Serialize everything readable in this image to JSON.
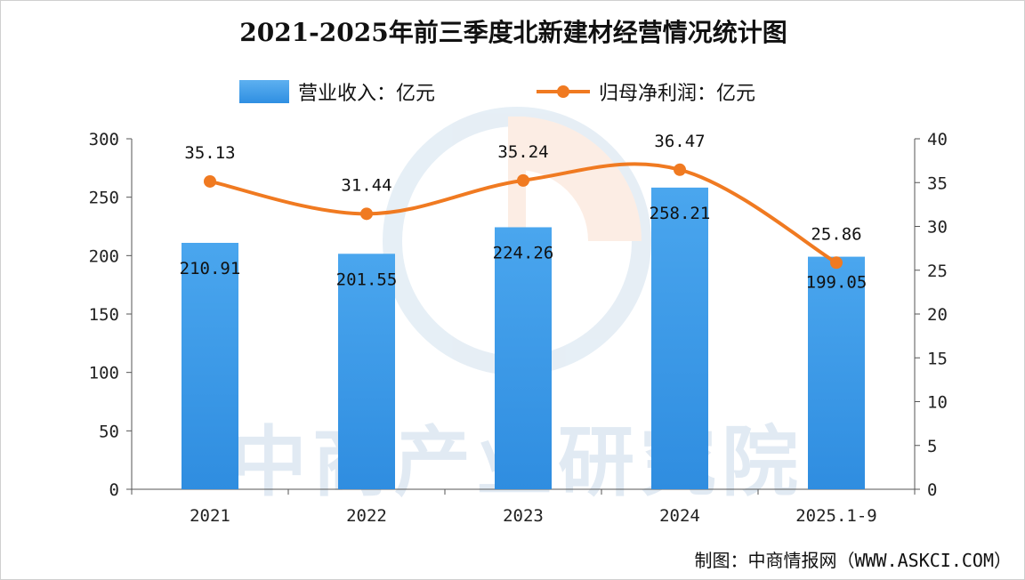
{
  "title": "2021-2025年前三季度北新建材经营情况统计图",
  "legend": {
    "bar_label": "营业收入：亿元",
    "line_label": "归母净利润：亿元"
  },
  "source": "制图：中商情报网（WWW.ASKCI.COM）",
  "watermark": "中商产业研究院",
  "colors": {
    "bar": "#3a97e6",
    "line": "#f07a21",
    "axis": "#555555"
  },
  "chart_data": {
    "type": "bar",
    "categories": [
      "2021",
      "2022",
      "2023",
      "2024",
      "2025.1-9"
    ],
    "series": [
      {
        "name": "营业收入：亿元",
        "type": "bar",
        "axis": "left",
        "values": [
          210.91,
          201.55,
          224.26,
          258.21,
          199.05
        ],
        "labels": [
          "210.91",
          "201.55",
          "224.26",
          "258.21",
          "199.05"
        ]
      },
      {
        "name": "归母净利润：亿元",
        "type": "line",
        "axis": "right",
        "values": [
          35.13,
          31.44,
          35.24,
          36.47,
          25.86
        ],
        "labels": [
          "35.13",
          "31.44",
          "35.24",
          "36.47",
          "25.86"
        ]
      }
    ],
    "y_left": {
      "range": [
        0,
        300
      ],
      "ticks": [
        0,
        50,
        100,
        150,
        200,
        250,
        300
      ]
    },
    "y_right": {
      "range": [
        0,
        40
      ],
      "ticks": [
        0,
        5,
        10,
        15,
        20,
        25,
        30,
        35,
        40
      ]
    },
    "grid": false,
    "legend_position": "top"
  }
}
